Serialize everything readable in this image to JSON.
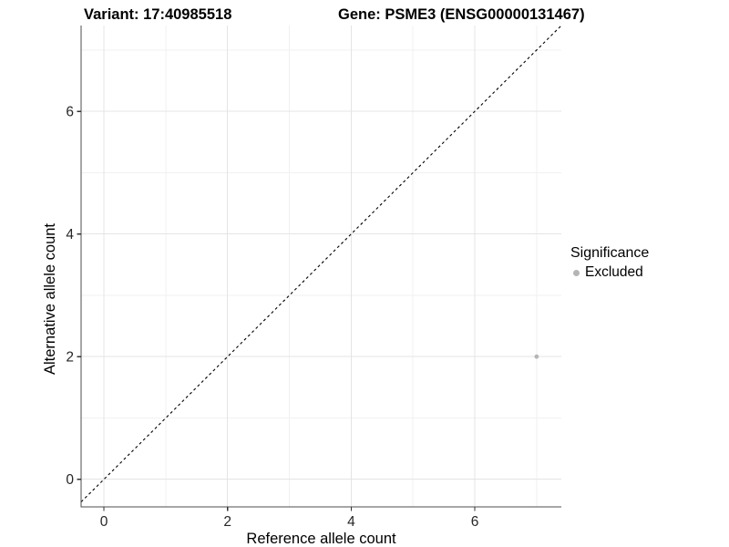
{
  "header": {
    "variant_title": "Variant: 17:40985518",
    "gene_title": "Gene: PSME3 (ENSG00000131467)"
  },
  "chart_data": {
    "type": "scatter",
    "title": "Variant: 17:40985518  Gene: PSME3 (ENSG00000131467)",
    "xlabel": "Reference allele count",
    "ylabel": "Alternative allele count",
    "xlim": [
      -0.37,
      7.4
    ],
    "ylim": [
      -0.45,
      7.4
    ],
    "x_ticks": [
      0,
      2,
      4,
      6
    ],
    "y_ticks": [
      0,
      2,
      4,
      6
    ],
    "x_minor": [
      1,
      3,
      5,
      7
    ],
    "y_minor": [
      1,
      3,
      5,
      7
    ],
    "grid": true,
    "identity_line": {
      "style": "dashed",
      "slope": 1,
      "intercept": 0,
      "color": "#000000"
    },
    "series": [
      {
        "name": "Excluded",
        "color": "#b5b5b5",
        "point_radius": 2.4,
        "points": [
          {
            "x": 7,
            "y": 2
          }
        ]
      }
    ],
    "legend": {
      "title": "Significance",
      "position": "right",
      "items": [
        {
          "label": "Excluded",
          "color": "#b5b5b5"
        }
      ]
    },
    "colors": {
      "axis_line": "#4d4d4d",
      "tick_mark": "#333333",
      "tick_label": "#262626",
      "grid_major": "#e4e4e4",
      "grid_minor": "#f1f1f1",
      "background": "#ffffff"
    }
  }
}
